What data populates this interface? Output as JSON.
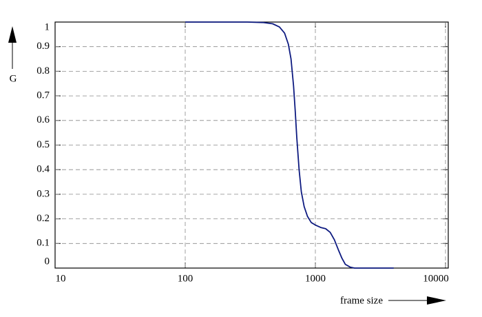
{
  "chart_data": {
    "type": "line",
    "x_label": "frame size",
    "y_label": "G",
    "x_scale": "log",
    "xlim": [
      10,
      10500
    ],
    "ylim": [
      0,
      1
    ],
    "xticks": [
      10,
      100,
      1000,
      10000
    ],
    "yticks": [
      0,
      0.1,
      0.2,
      0.3,
      0.4,
      0.5,
      0.6,
      0.7,
      0.8,
      0.9,
      1
    ],
    "grid": true,
    "series": [
      {
        "color": "#0d1a80",
        "x": [
          100,
          200,
          300,
          400,
          470,
          530,
          580,
          620,
          650,
          680,
          700,
          720,
          750,
          780,
          820,
          870,
          930,
          1000,
          1100,
          1200,
          1300,
          1400,
          1500,
          1600,
          1700,
          1850,
          2000,
          2500,
          3000,
          4000
        ],
        "values": [
          1,
          1,
          1,
          0.998,
          0.993,
          0.98,
          0.955,
          0.91,
          0.85,
          0.74,
          0.64,
          0.53,
          0.4,
          0.31,
          0.25,
          0.21,
          0.185,
          0.175,
          0.165,
          0.16,
          0.145,
          0.115,
          0.075,
          0.04,
          0.015,
          0.004,
          0,
          0,
          0,
          0
        ]
      }
    ]
  }
}
